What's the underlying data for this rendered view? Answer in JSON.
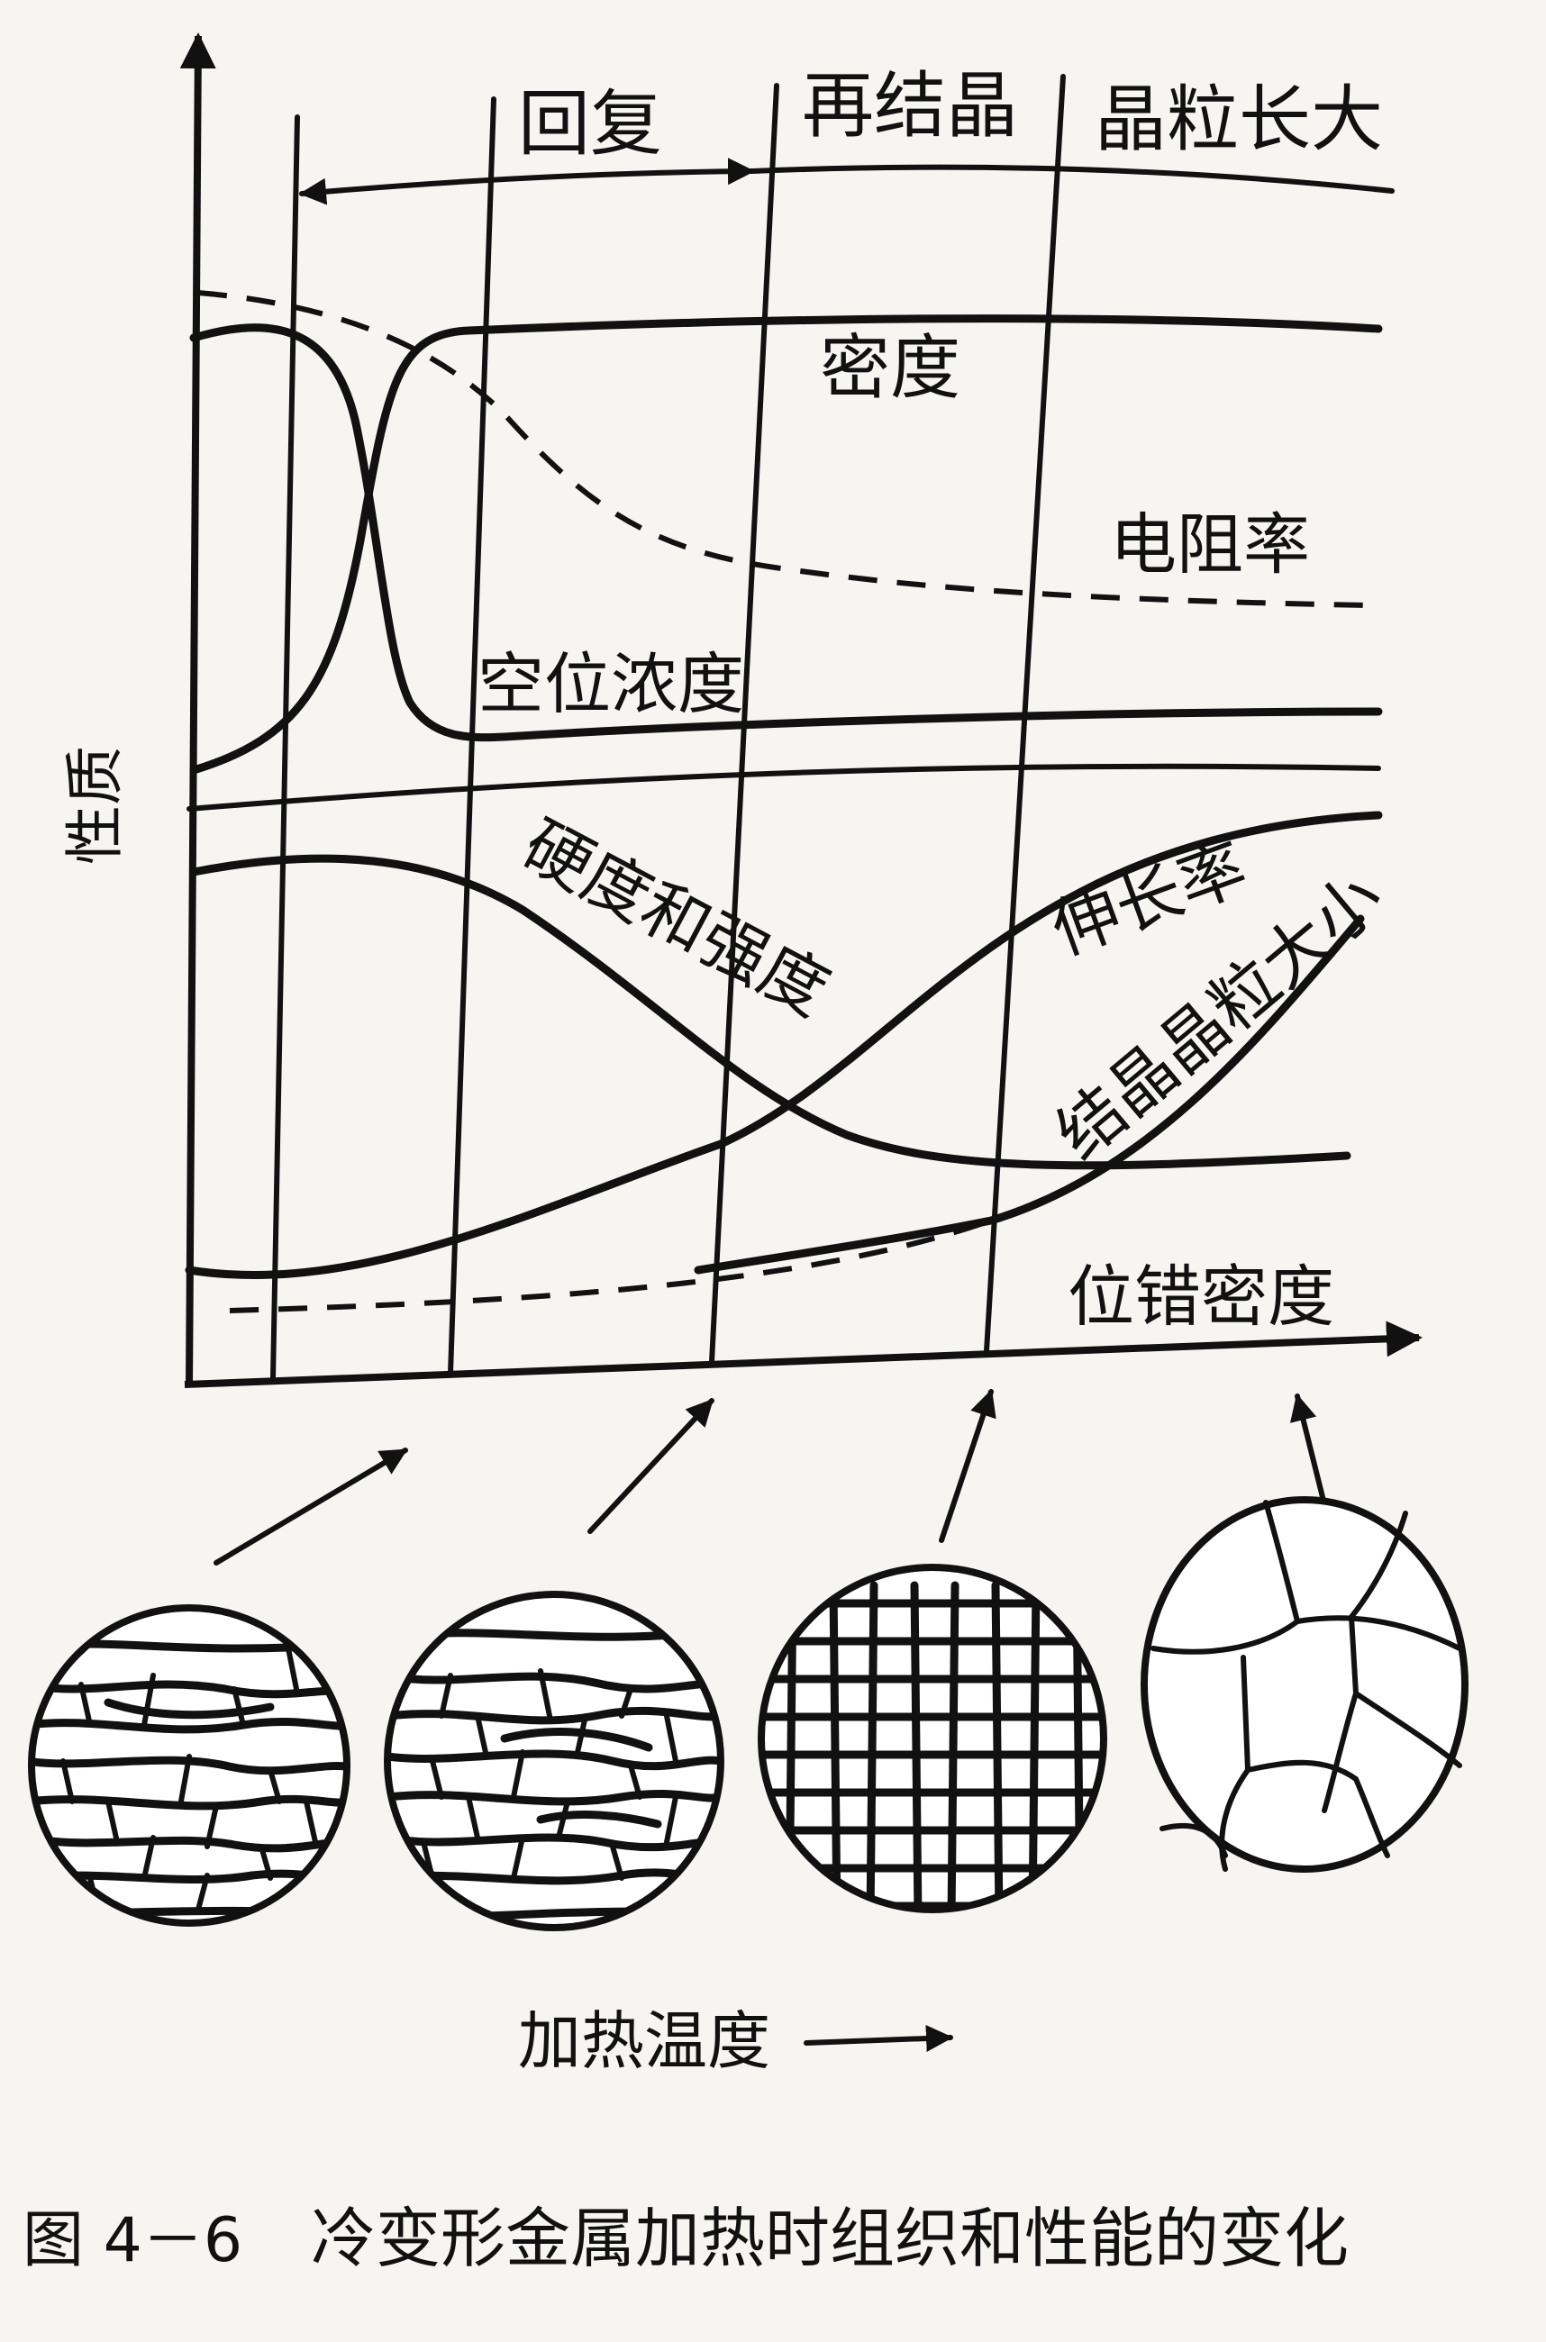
{
  "stages": {
    "recovery": "回复",
    "recrystallization": "再结晶",
    "grain_growth": "晶粒长大"
  },
  "curves": {
    "density": "密度",
    "resistivity": "电阻率",
    "vacancy": "空位浓度",
    "hardness": "硬度和强度",
    "elongation": "伸长率",
    "grain_size": "结晶晶粒大小",
    "dislocation": "位错密度"
  },
  "axes": {
    "y": "性质",
    "x": "加热温度"
  },
  "caption": {
    "number": "图 4－6",
    "text": "冷变形金属加热时组织和性能的变化"
  }
}
